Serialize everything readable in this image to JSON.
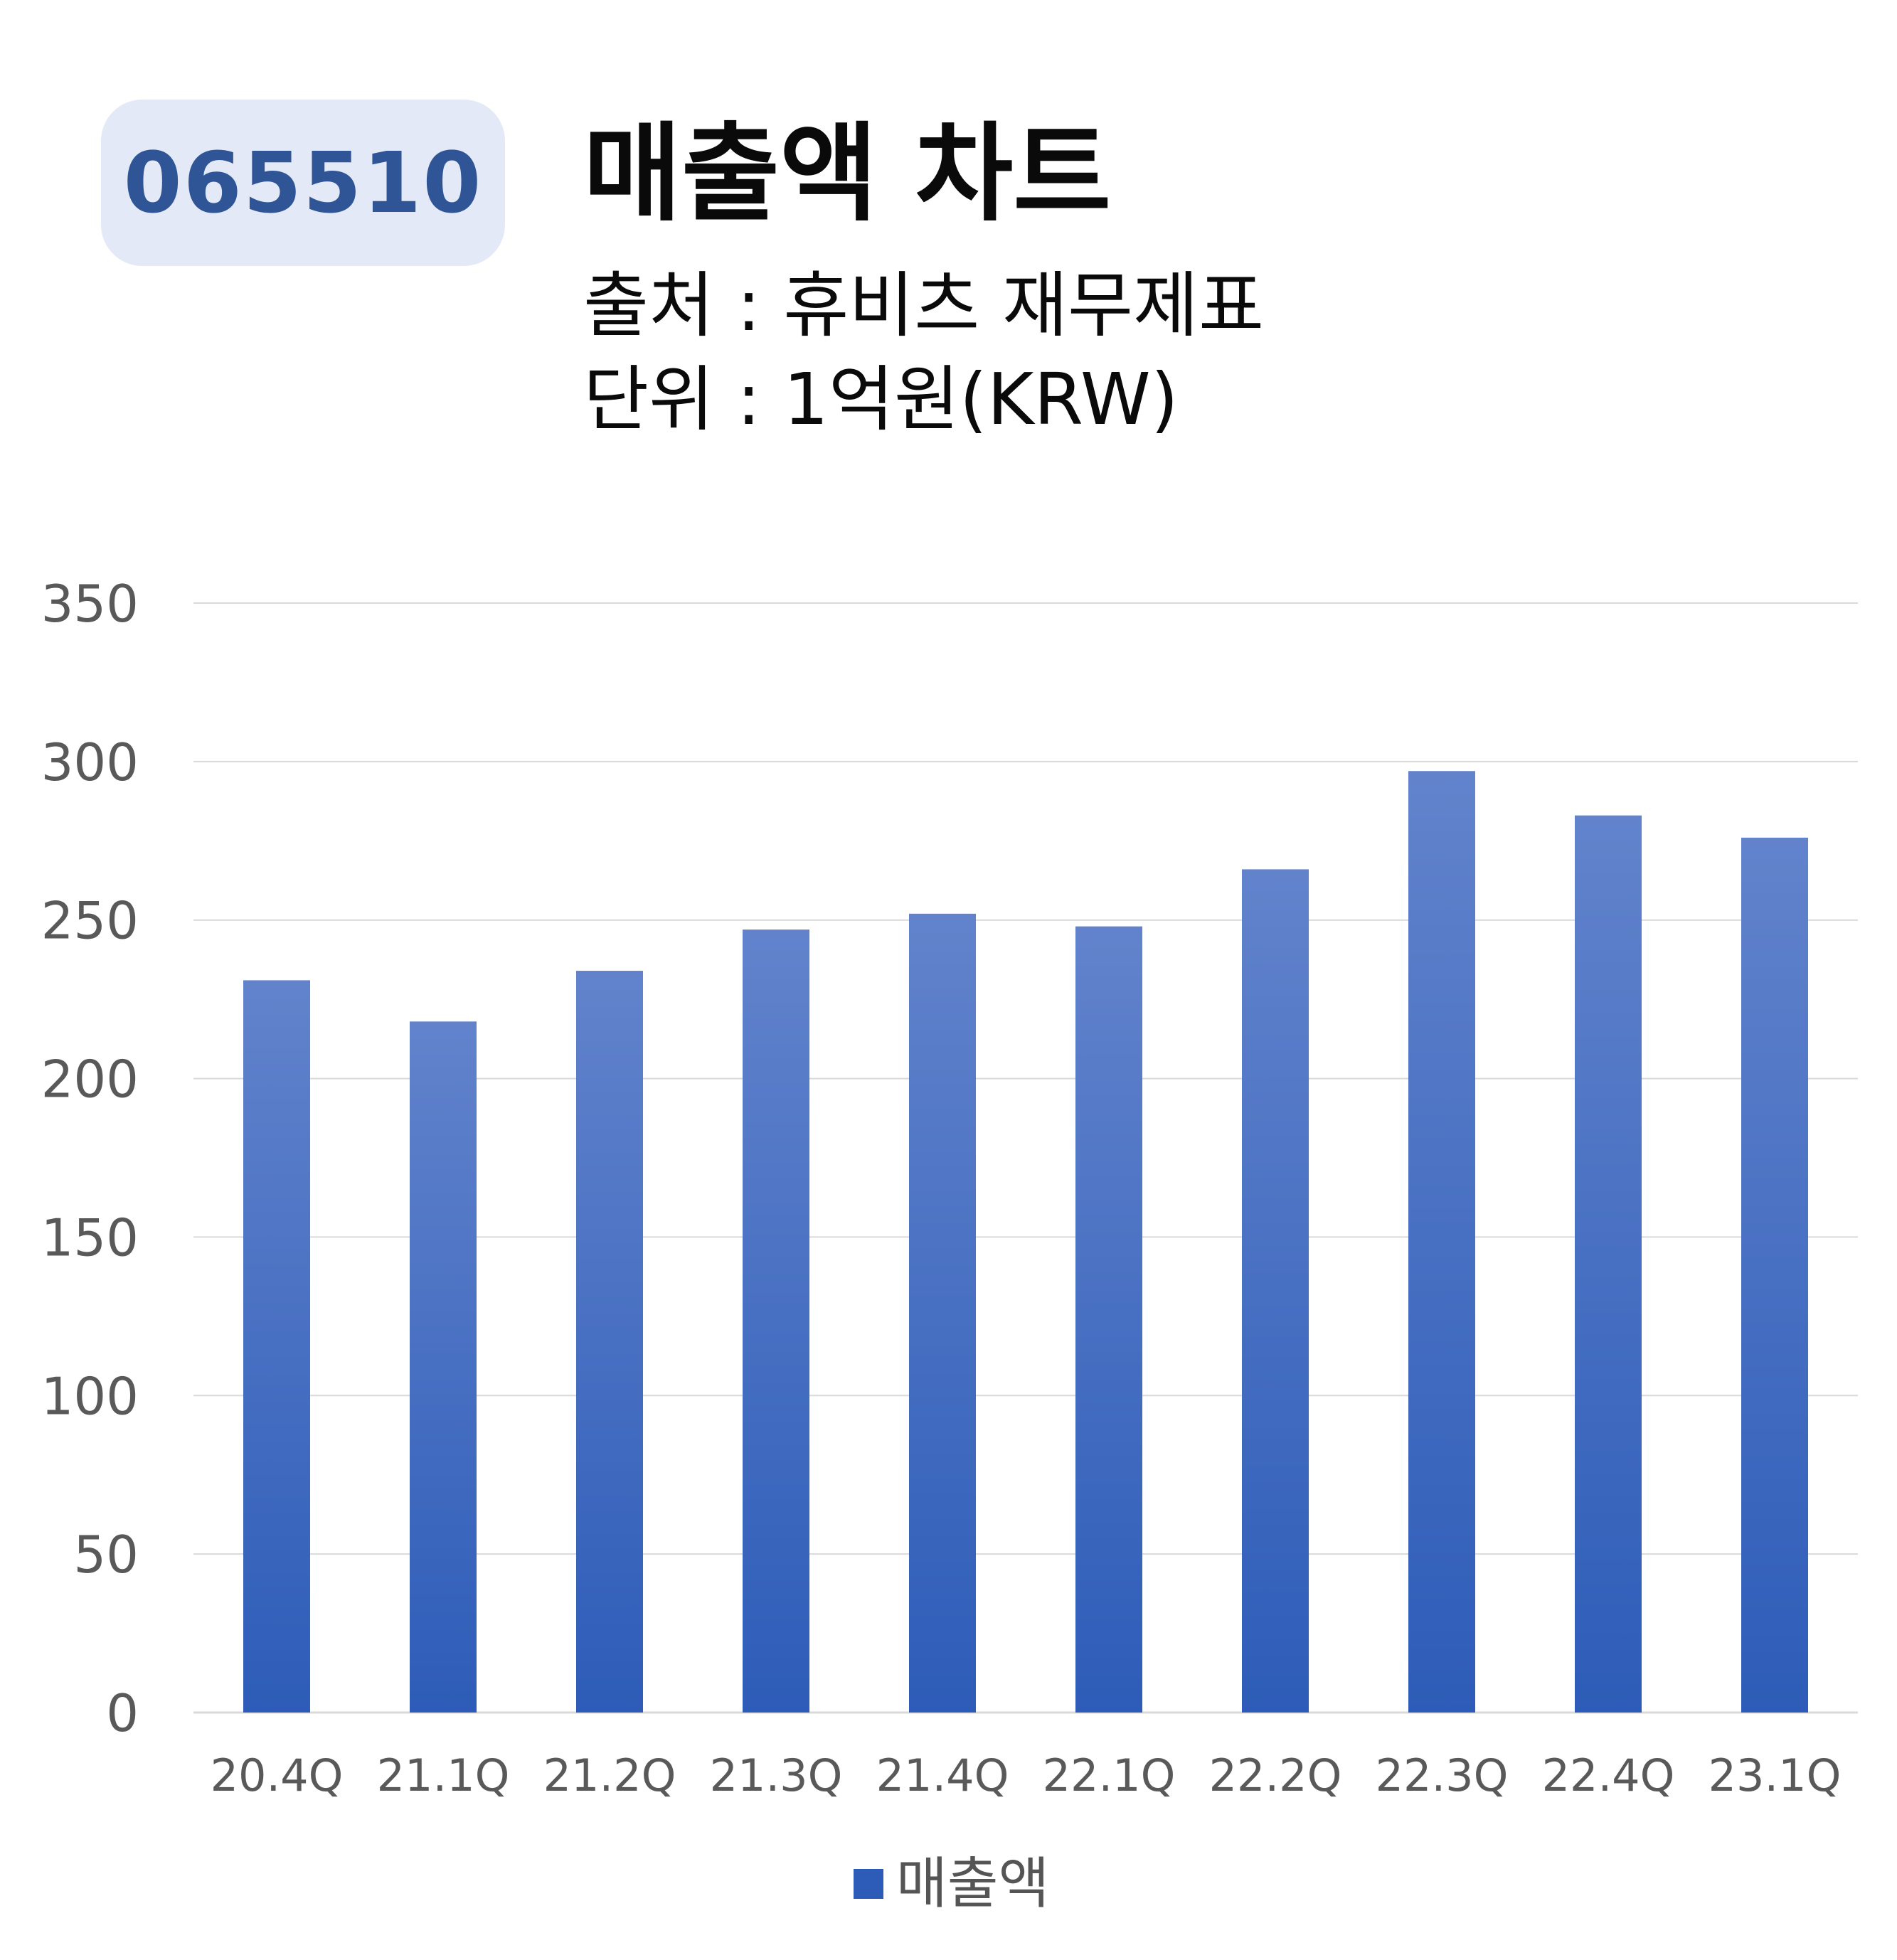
{
  "header": {
    "ticker": "065510",
    "title": "매출액 차트",
    "source_line": "출처 : 휴비츠 재무제표",
    "unit_line": "단위 : 1억원(KRW)"
  },
  "colors": {
    "bar_top": "#6283cc",
    "bar_bottom": "#2d5cb8",
    "badge_bg": "#e3e9f6",
    "badge_text": "#2f5597",
    "grid": "#d9d9d9",
    "axis_text": "#595959"
  },
  "chart_data": {
    "type": "bar",
    "categories": [
      "20.4Q",
      "21.1Q",
      "21.2Q",
      "21.3Q",
      "21.4Q",
      "22.1Q",
      "22.2Q",
      "22.3Q",
      "22.4Q",
      "23.1Q"
    ],
    "series": [
      {
        "name": "매출액",
        "values": [
          231,
          218,
          234,
          247,
          252,
          248,
          266,
          297,
          283,
          276
        ]
      }
    ],
    "ylim": [
      0,
      350
    ],
    "yticks": [
      0,
      50,
      100,
      150,
      200,
      250,
      300,
      350
    ],
    "grid": true,
    "legend_position": "bottom"
  }
}
